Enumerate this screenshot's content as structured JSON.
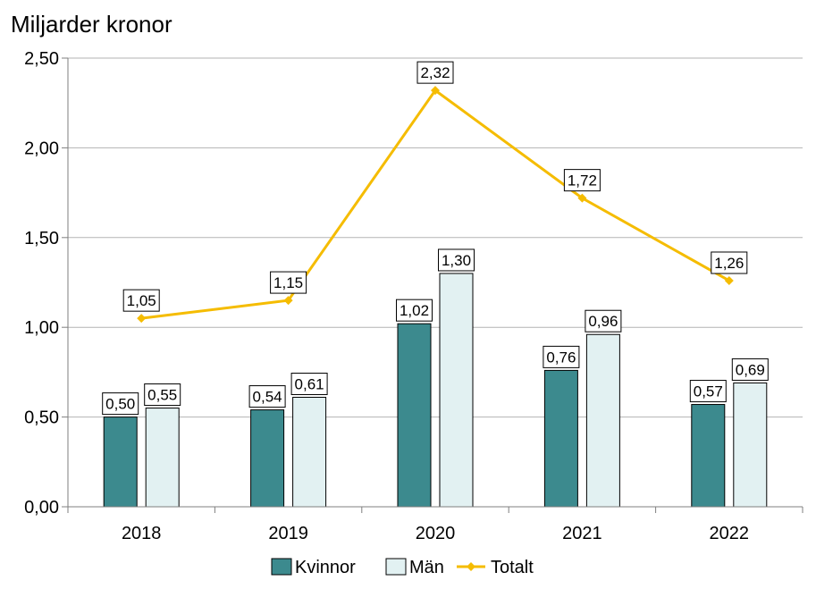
{
  "chart_data": {
    "type": "bar",
    "title": "Miljarder kronor",
    "xlabel": "",
    "ylabel": "Miljarder kronor",
    "categories": [
      "2018",
      "2019",
      "2020",
      "2021",
      "2022"
    ],
    "ylim": [
      0,
      2.5
    ],
    "yticks": [
      0,
      0.5,
      1.0,
      1.5,
      2.0,
      2.5
    ],
    "ytick_labels": [
      "0,00",
      "0,50",
      "1,00",
      "1,50",
      "2,00",
      "2,50"
    ],
    "grid": true,
    "legend_position": "bottom",
    "series": [
      {
        "name": "Kvinnor",
        "kind": "bar",
        "color": "#3c8a8e",
        "values": [
          0.5,
          0.54,
          1.02,
          0.76,
          0.57
        ],
        "labels": [
          "0,50",
          "0,54",
          "1,02",
          "0,76",
          "0,57"
        ]
      },
      {
        "name": "Män",
        "kind": "bar",
        "color": "#e2f1f2",
        "values": [
          0.55,
          0.61,
          1.3,
          0.96,
          0.69
        ],
        "labels": [
          "0,55",
          "0,61",
          "1,30",
          "0,96",
          "0,69"
        ]
      },
      {
        "name": "Totalt",
        "kind": "line",
        "color": "#f5bc00",
        "values": [
          1.05,
          1.15,
          2.32,
          1.72,
          1.26
        ],
        "labels": [
          "1,05",
          "1,15",
          "2,32",
          "1,72",
          "1,26"
        ]
      }
    ]
  }
}
